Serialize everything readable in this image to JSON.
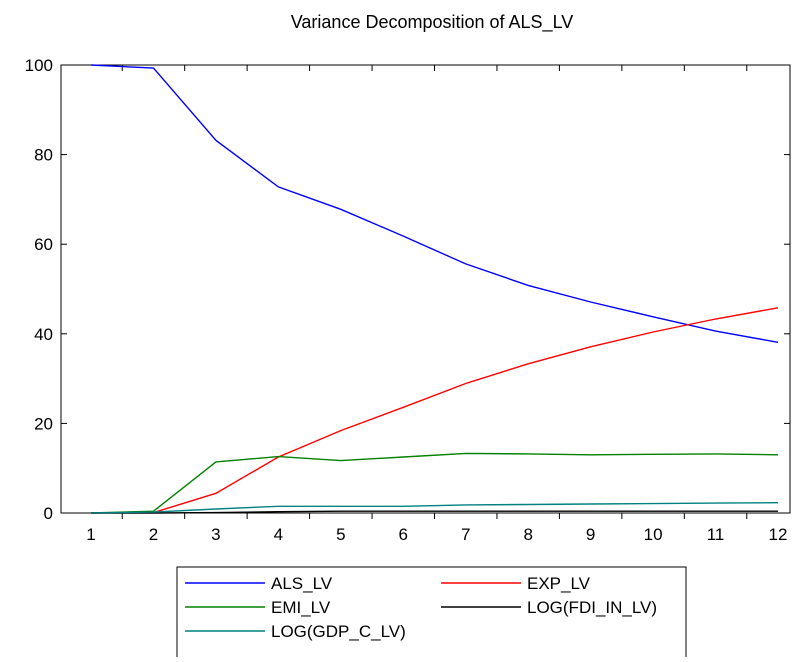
{
  "chart_data": {
    "type": "line",
    "title": "Variance Decomposition of ALS_LV",
    "xlabel": "",
    "ylabel": "",
    "x": [
      1,
      2,
      3,
      4,
      5,
      6,
      7,
      8,
      9,
      10,
      11,
      12
    ],
    "ylim": [
      0,
      100
    ],
    "yticks": [
      0,
      20,
      40,
      60,
      80,
      100
    ],
    "grid": false,
    "legend_position": "bottom-center",
    "series": [
      {
        "name": "ALS_LV",
        "color": "#0000ff",
        "values": [
          100,
          99.3,
          83.2,
          72.8,
          67.8,
          61.8,
          55.6,
          50.8,
          47.1,
          43.8,
          40.6,
          38.1
        ]
      },
      {
        "name": "EXP_LV",
        "color": "#ff0000",
        "values": [
          0,
          0.1,
          4.4,
          12.5,
          18.4,
          23.6,
          28.9,
          33.3,
          37.1,
          40.4,
          43.3,
          45.8
        ]
      },
      {
        "name": "EMI_LV",
        "color": "#008000",
        "values": [
          0,
          0.4,
          11.4,
          12.6,
          11.7,
          12.5,
          13.3,
          13.2,
          13.0,
          13.1,
          13.2,
          13.0
        ]
      },
      {
        "name": "LOG(FDI_IN_LV)",
        "color": "#000000",
        "values": [
          0,
          0,
          0.1,
          0.3,
          0.4,
          0.4,
          0.4,
          0.4,
          0.4,
          0.4,
          0.4,
          0.4
        ]
      },
      {
        "name": "LOG(GDP_C_LV)",
        "color": "#008080",
        "values": [
          0,
          0.2,
          0.9,
          1.5,
          1.5,
          1.5,
          1.8,
          1.9,
          2.0,
          2.1,
          2.2,
          2.3
        ]
      }
    ]
  }
}
